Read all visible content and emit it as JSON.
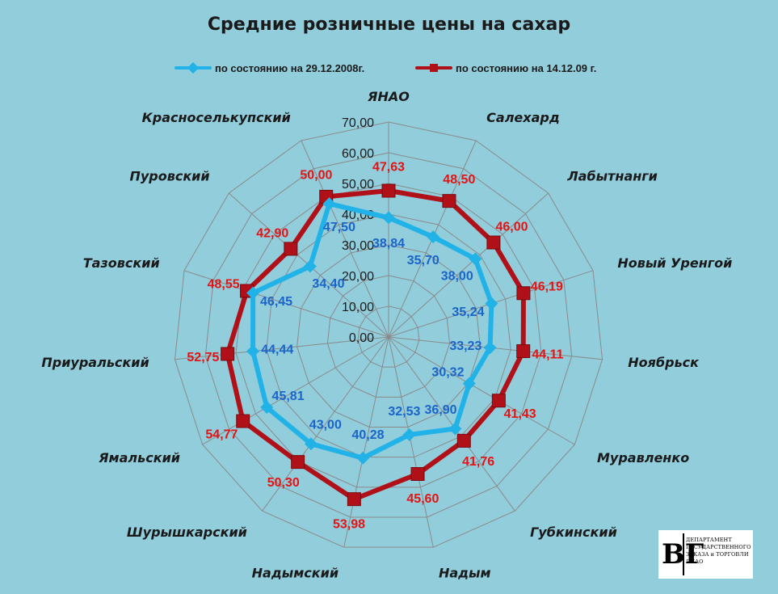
{
  "chart_data": {
    "type": "radar",
    "title": "Средние розничные цены на сахар",
    "categories": [
      "ЯНАО",
      "Салехард",
      "Лабытнанги",
      "Новый Уренгой",
      "Ноябрьск",
      "Муравленко",
      "Губкинский",
      "Надым",
      "Надымский",
      "Шурышкарский",
      "Ямальский",
      "Приуральский",
      "Тазовский",
      "Пуровский",
      "Красноселькупский"
    ],
    "series": [
      {
        "name": "по состоянию на 29.12.2008г.",
        "color": "#21b2e8",
        "marker": "diamond",
        "values": [
          38.84,
          35.7,
          38.0,
          35.24,
          33.23,
          30.32,
          36.9,
          32.53,
          40.28,
          43.0,
          45.81,
          44.44,
          46.45,
          34.4,
          47.5
        ],
        "labels": [
          "38,84",
          "35,70",
          "38,00",
          "35,24",
          "33,23",
          "30,32",
          "36,90",
          "32,53",
          "40,28",
          "43,00",
          "45,81",
          "44,44",
          "46,45",
          "34,40",
          "47,50"
        ]
      },
      {
        "name": "по состоянию на 14.12.09 г.",
        "color": "#b01018",
        "marker": "square",
        "values": [
          47.63,
          48.5,
          46.0,
          46.19,
          44.11,
          41.43,
          41.76,
          45.6,
          53.98,
          50.3,
          54.77,
          52.75,
          48.55,
          42.9,
          50.0
        ],
        "labels": [
          "47,63",
          "48,50",
          "46,00",
          "46,19",
          "44,11",
          "41,43",
          "41,76",
          "45,60",
          "53,98",
          "50,30",
          "54,77",
          "52,75",
          "48,55",
          "42,90",
          "50,00"
        ]
      }
    ],
    "rlim": [
      0,
      70
    ],
    "ticks": [
      0,
      10,
      20,
      30,
      40,
      50,
      60,
      70
    ],
    "tick_labels": [
      "0,00",
      "10,00",
      "20,00",
      "30,00",
      "40,00",
      "50,00",
      "60,00",
      "70,00"
    ],
    "grid": true,
    "legend": "top"
  },
  "logo": {
    "mark": "ВГ",
    "text": "ДЕПАРТАМЕНТ ГОСУДАРСТВЕННОГО ЗАКАЗА и ТОРГОВЛИ ЯНАО"
  }
}
